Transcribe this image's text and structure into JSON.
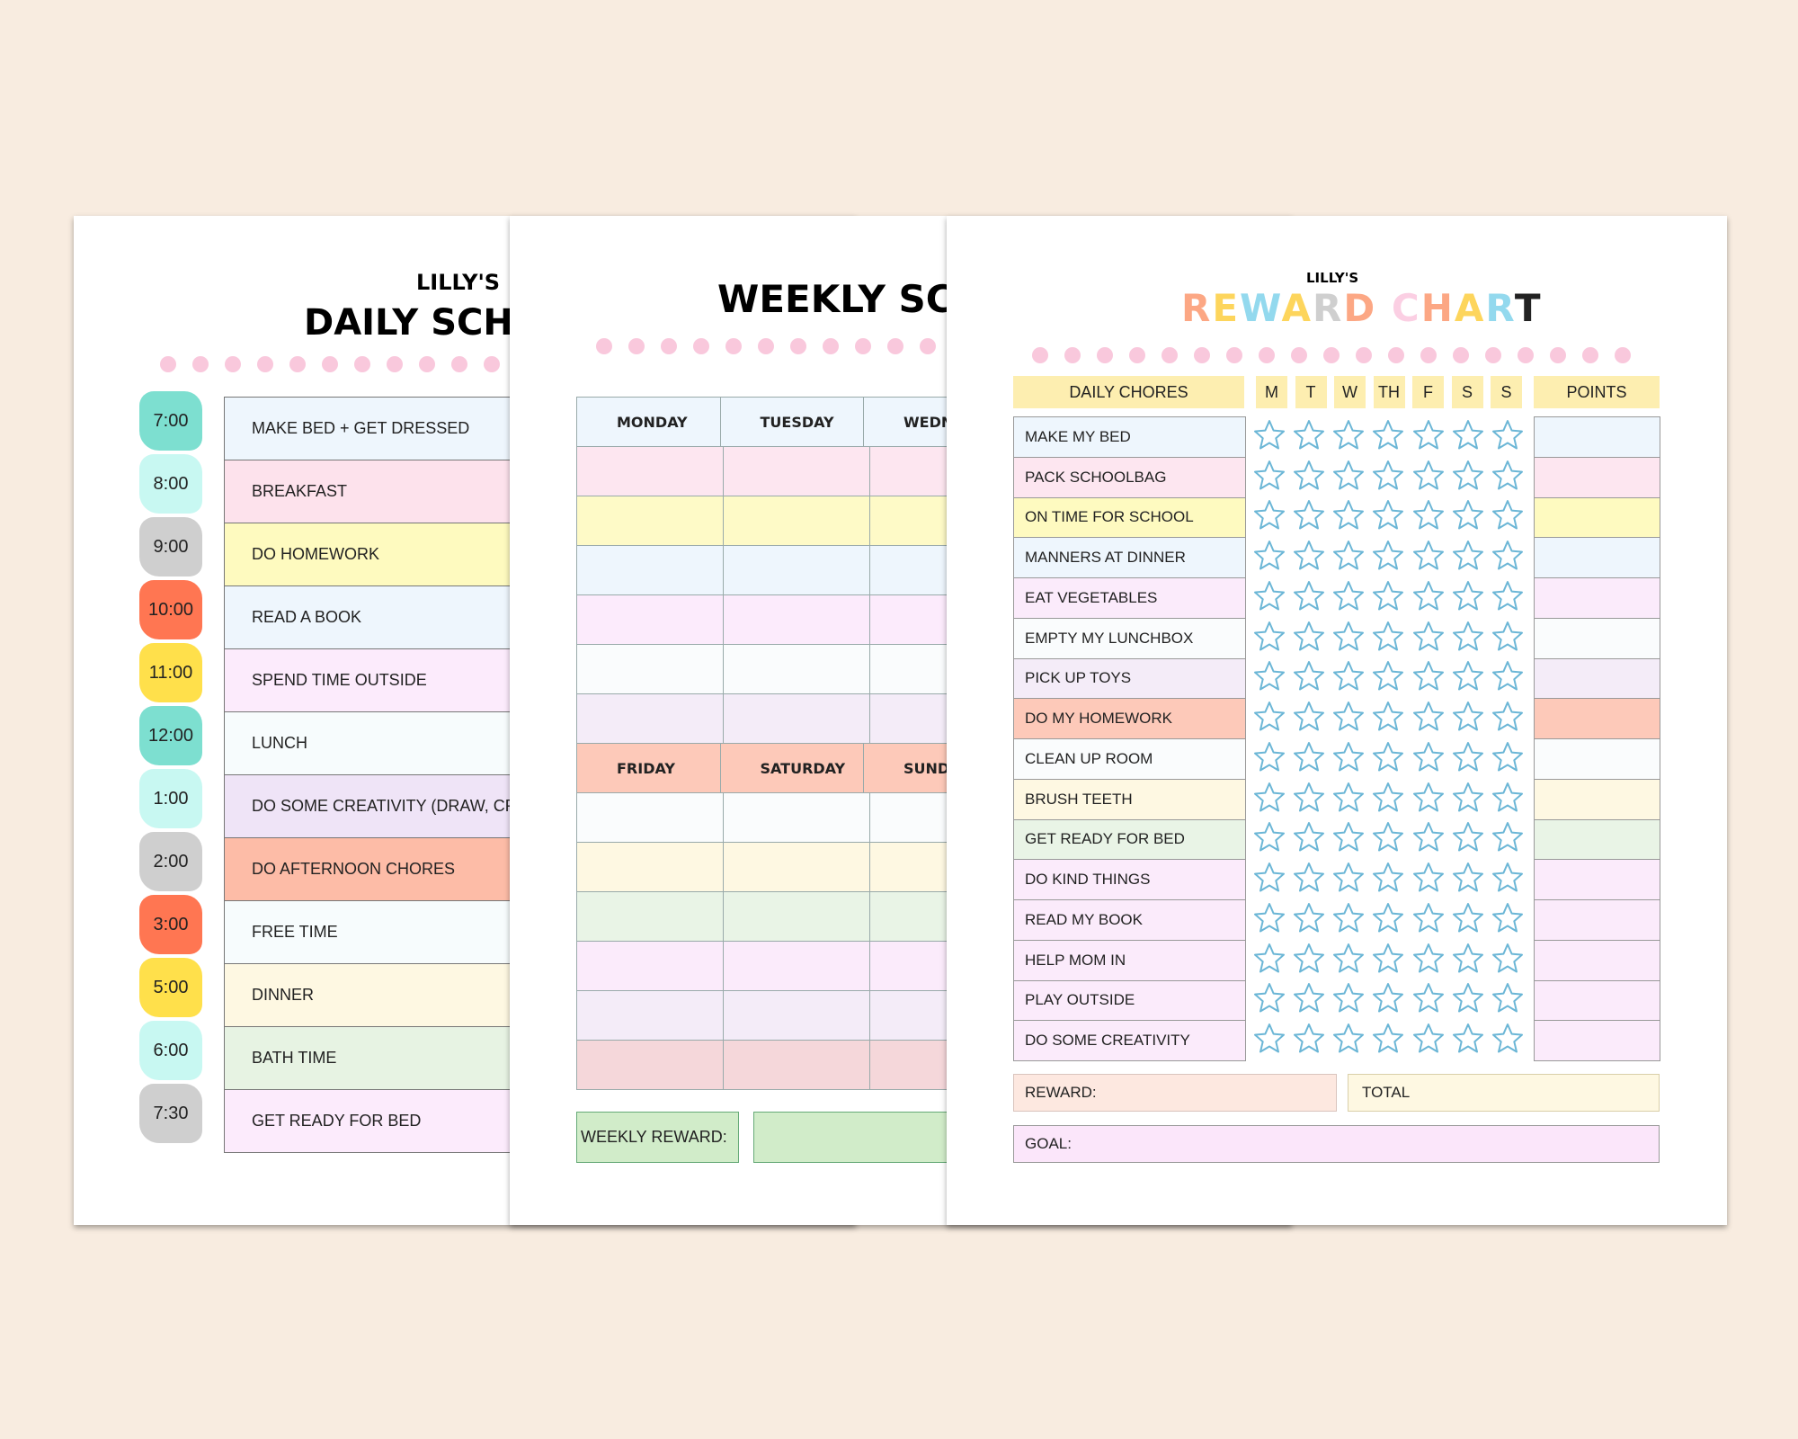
{
  "daily": {
    "name": "LILLY'S",
    "title": "DAILY SCHEDULE",
    "rows": [
      {
        "time": "7:00",
        "task": "MAKE BED + GET DRESSED",
        "time_color": "#7ddfd0",
        "task_color": "#eef6fd"
      },
      {
        "time": "8:00",
        "task": "BREAKFAST",
        "time_color": "#c8f8f2",
        "task_color": "#fde2ec"
      },
      {
        "time": "9:00",
        "task": "DO HOMEWORK",
        "time_color": "#cfcfcf",
        "task_color": "#fefabf"
      },
      {
        "time": "10:00",
        "task": "READ A BOOK",
        "time_color": "#ff7652",
        "task_color": "#eef6fd"
      },
      {
        "time": "11:00",
        "task": "SPEND TIME OUTSIDE",
        "time_color": "#ffe04b",
        "task_color": "#fcebfc"
      },
      {
        "time": "12:00",
        "task": "LUNCH",
        "time_color": "#7ddfd0",
        "task_color": "#f7fcfd"
      },
      {
        "time": "1:00",
        "task": "DO SOME CREATIVITY (DRAW, CRAFT)",
        "time_color": "#c8f8f2",
        "task_color": "#efe4f7"
      },
      {
        "time": "2:00",
        "task": "DO AFTERNOON CHORES",
        "time_color": "#cfcfcf",
        "task_color": "#fdbca7"
      },
      {
        "time": "3:00",
        "task": "FREE TIME",
        "time_color": "#ff7652",
        "task_color": "#f7fcfd"
      },
      {
        "time": "5:00",
        "task": "DINNER",
        "time_color": "#ffe04b",
        "task_color": "#fef8e2"
      },
      {
        "time": "6:00",
        "task": "BATH TIME",
        "time_color": "#c8f8f2",
        "task_color": "#e7f3e3"
      },
      {
        "time": "7:30",
        "task": "GET READY FOR BED",
        "time_color": "#cfcfcf",
        "task_color": "#fcebfc"
      }
    ]
  },
  "weekly": {
    "title": "WEEKLY SCHEDULE",
    "top_days": [
      "MONDAY",
      "TUESDAY",
      "WEDNESDAY"
    ],
    "bottom_days": [
      "FRIDAY",
      "SATURDAY",
      "SUNDAY"
    ],
    "top_header_color": "#eef6fd",
    "bottom_header_color": "#fdc9b9",
    "top_row_colors": [
      "#fde6f0",
      "#fefac7",
      "#eef6fd",
      "#fcebfc",
      "#fafcfd",
      "#f4ecf8"
    ],
    "bottom_row_colors": [
      "#fafcfd",
      "#fef8e2",
      "#e9f4e6",
      "#fbebfb",
      "#f4ecf8",
      "#f5d7da"
    ],
    "reward_label": "WEEKLY REWARD:"
  },
  "reward": {
    "name": "LILLY'S",
    "title": "REWARD CHART",
    "title_colors": [
      "#fca784",
      "#fdd55c",
      "#93d9ee",
      "#fdd55c",
      "#cfcfcf",
      "#fca784",
      "#ffffff",
      "#fbcfe3",
      "#fca784",
      "#fdd55c",
      "#93d9ee",
      "#222222"
    ],
    "chores_header": "DAILY CHORES",
    "days": [
      "M",
      "T",
      "W",
      "TH",
      "F",
      "S",
      "S"
    ],
    "points_header": "POINTS",
    "star_color": "#6bb6d6",
    "chores": [
      {
        "label": "MAKE MY BED",
        "color": "#eef6fd"
      },
      {
        "label": "PACK SCHOOLBAG",
        "color": "#fde6f0"
      },
      {
        "label": "ON TIME FOR SCHOOL",
        "color": "#fefac0"
      },
      {
        "label": "MANNERS AT DINNER",
        "color": "#eef6fd"
      },
      {
        "label": "EAT VEGETABLES",
        "color": "#fbebfb"
      },
      {
        "label": "EMPTY MY LUNCHBOX",
        "color": "#fafcfd"
      },
      {
        "label": "PICK UP TOYS",
        "color": "#f4ecf8"
      },
      {
        "label": "DO MY HOMEWORK",
        "color": "#fdc9b9"
      },
      {
        "label": "CLEAN UP ROOM",
        "color": "#fafcfd"
      },
      {
        "label": "BRUSH TEETH",
        "color": "#fef8e2"
      },
      {
        "label": "GET READY FOR BED",
        "color": "#e9f4e6"
      },
      {
        "label": "DO KIND THINGS",
        "color": "#fbebfb"
      },
      {
        "label": "READ MY BOOK",
        "color": "#fbebfb"
      },
      {
        "label": "HELP MOM IN",
        "color": "#fbebfb"
      },
      {
        "label": "PLAY OUTSIDE",
        "color": "#fbebfb"
      },
      {
        "label": "DO SOME CREATIVITY",
        "color": "#fbebfb"
      }
    ],
    "reward_label": "REWARD:",
    "total_label": "TOTAL",
    "goal_label": "GOAL:"
  }
}
